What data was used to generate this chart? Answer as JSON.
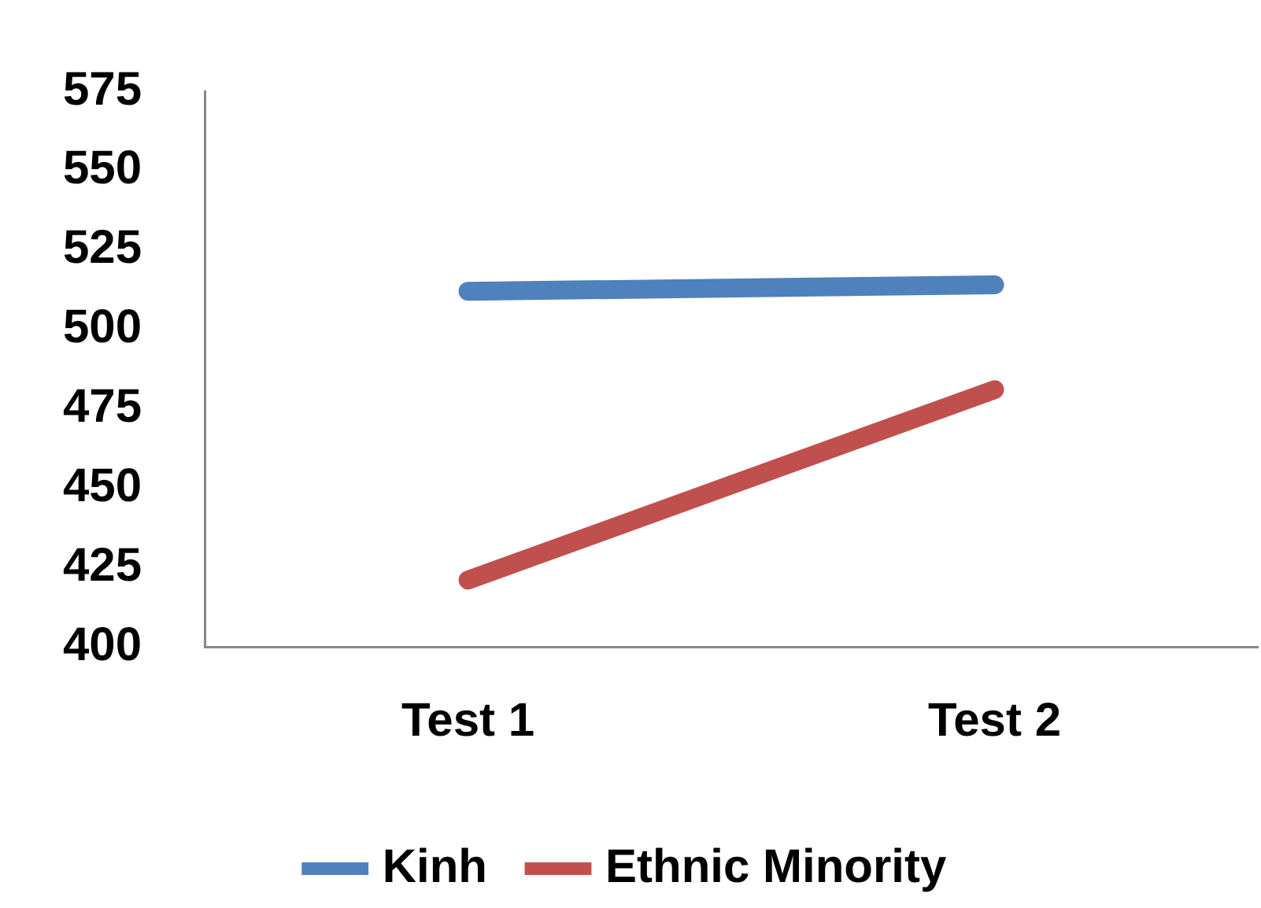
{
  "chart_data": {
    "type": "line",
    "categories": [
      "Test 1",
      "Test 2"
    ],
    "series": [
      {
        "name": "Kinh",
        "color": "#4f81bd",
        "values": [
          512,
          514
        ]
      },
      {
        "name": "Ethnic Minority",
        "color": "#c0504d",
        "values": [
          421,
          481
        ]
      }
    ],
    "ylim": [
      400,
      575
    ],
    "yticks": [
      400,
      425,
      450,
      475,
      500,
      525,
      550,
      575
    ],
    "grid": false,
    "legend": "bottom",
    "marker": "none"
  }
}
